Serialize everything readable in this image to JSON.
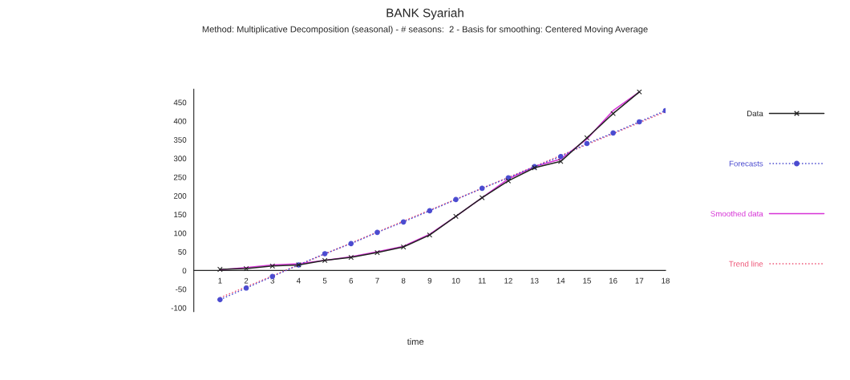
{
  "chart_data": {
    "type": "line",
    "title": "BANK Syariah",
    "subtitle": "Method: Multiplicative Decomposition (seasonal) - # seasons:  2 - Basis for smoothing: Centered Moving Average",
    "xlabel": "time",
    "xlim": [
      0,
      18
    ],
    "xticks": [
      1,
      2,
      3,
      4,
      5,
      6,
      7,
      8,
      9,
      10,
      11,
      12,
      13,
      14,
      15,
      16,
      17,
      18
    ],
    "ylim": [
      -110,
      485
    ],
    "yticks": [
      -100,
      -50,
      0,
      50,
      100,
      150,
      200,
      250,
      300,
      350,
      400,
      450
    ],
    "grid": false,
    "legend": "right",
    "series": [
      {
        "name": "Data",
        "color": "#222222",
        "marker": "cross",
        "line_style": "solid",
        "x": [
          1,
          2,
          3,
          4,
          5,
          6,
          7,
          8,
          9,
          10,
          11,
          12,
          13,
          14,
          15,
          16,
          17
        ],
        "values": [
          3,
          5,
          12,
          15,
          27,
          35,
          48,
          63,
          95,
          145,
          195,
          240,
          275,
          292,
          355,
          420,
          478
        ]
      },
      {
        "name": "Forecasts",
        "color": "#4b4bd0",
        "marker": "circle",
        "line_style": "dotted",
        "x": [
          1,
          2,
          3,
          4,
          5,
          6,
          7,
          8,
          9,
          10,
          11,
          12,
          13,
          14,
          15,
          16,
          17,
          18
        ],
        "values": [
          -78,
          -47,
          -16,
          15,
          45,
          72,
          102,
          130,
          160,
          190,
          220,
          248,
          278,
          305,
          340,
          368,
          398,
          428
        ]
      },
      {
        "name": "Smoothed data",
        "color": "#d633d6",
        "marker": "none",
        "line_style": "solid",
        "x": [
          1,
          2,
          3,
          4,
          5,
          6,
          7,
          8,
          9,
          10,
          11,
          12,
          13,
          14,
          15,
          16,
          17
        ],
        "values": [
          2,
          8,
          15,
          18,
          27,
          37,
          50,
          65,
          97,
          145,
          195,
          245,
          278,
          298,
          352,
          428,
          478
        ]
      },
      {
        "name": "Trend line",
        "color": "#ee5577",
        "marker": "none",
        "line_style": "dotted",
        "x": [
          1,
          18
        ],
        "values": [
          -73,
          425
        ]
      }
    ]
  }
}
